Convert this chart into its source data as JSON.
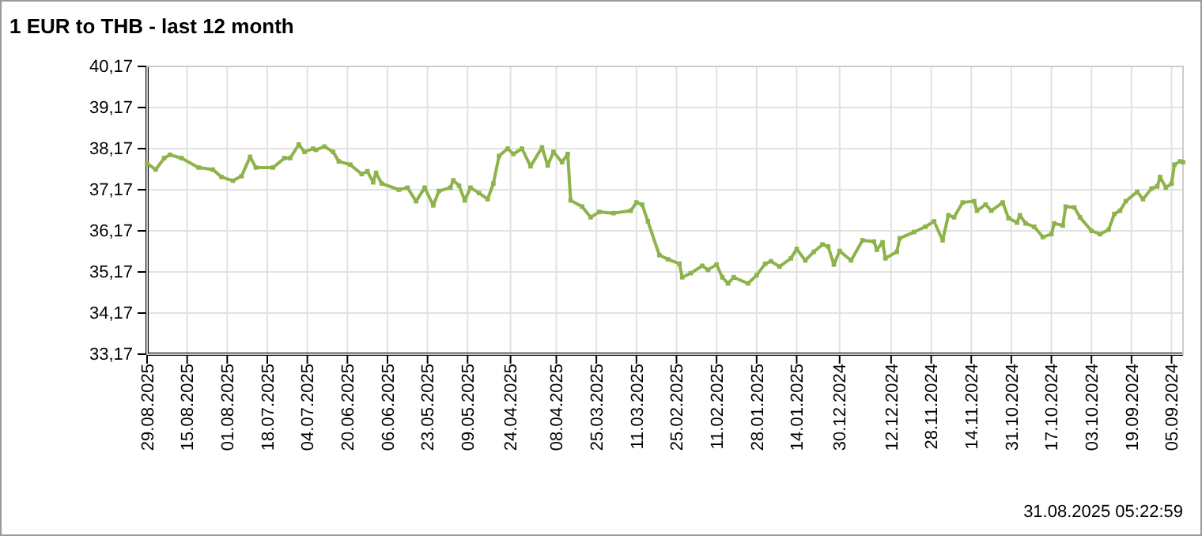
{
  "chart_data": {
    "type": "line",
    "title": "1 EUR to THB - last 12 month",
    "x": [
      "2025-08-29",
      "2025-08-26",
      "2025-08-23",
      "2025-08-21",
      "2025-08-17",
      "2025-08-11",
      "2025-08-06",
      "2025-08-03",
      "2025-07-30",
      "2025-07-27",
      "2025-07-24",
      "2025-07-22",
      "2025-07-16",
      "2025-07-12",
      "2025-07-10",
      "2025-07-07",
      "2025-07-05",
      "2025-07-02",
      "2025-07-01",
      "2025-06-28",
      "2025-06-25",
      "2025-06-23",
      "2025-06-19",
      "2025-06-15",
      "2025-06-13",
      "2025-06-11",
      "2025-06-10",
      "2025-06-08",
      "2025-06-02",
      "2025-05-30",
      "2025-05-27",
      "2025-05-24",
      "2025-05-21",
      "2025-05-19",
      "2025-05-15",
      "2025-05-14",
      "2025-05-12",
      "2025-05-10",
      "2025-05-08",
      "2025-05-05",
      "2025-05-02",
      "2025-04-30",
      "2025-04-28",
      "2025-04-25",
      "2025-04-23",
      "2025-04-20",
      "2025-04-17",
      "2025-04-13",
      "2025-04-11",
      "2025-04-09",
      "2025-04-06",
      "2025-04-04",
      "2025-04-03",
      "2025-03-30",
      "2025-03-27",
      "2025-03-24",
      "2025-03-19",
      "2025-03-13",
      "2025-03-11",
      "2025-03-09",
      "2025-03-07",
      "2025-03-03",
      "2025-02-28",
      "2025-02-24",
      "2025-02-23",
      "2025-02-20",
      "2025-02-16",
      "2025-02-14",
      "2025-02-11",
      "2025-02-09",
      "2025-02-07",
      "2025-02-05",
      "2025-01-31",
      "2025-01-28",
      "2025-01-25",
      "2025-01-23",
      "2025-01-20",
      "2025-01-16",
      "2025-01-14",
      "2025-01-11",
      "2025-01-08",
      "2025-01-05",
      "2025-01-03",
      "2025-01-01",
      "2024-12-30",
      "2024-12-26",
      "2024-12-22",
      "2024-12-18",
      "2024-12-17",
      "2024-12-15",
      "2024-12-14",
      "2024-12-10",
      "2024-12-09",
      "2024-12-04",
      "2024-11-30",
      "2024-11-27",
      "2024-11-24",
      "2024-11-22",
      "2024-11-20",
      "2024-11-17",
      "2024-11-13",
      "2024-11-12",
      "2024-11-09",
      "2024-11-07",
      "2024-11-03",
      "2024-11-01",
      "2024-10-29",
      "2024-10-28",
      "2024-10-26",
      "2024-10-23",
      "2024-10-20",
      "2024-10-17",
      "2024-10-16",
      "2024-10-13",
      "2024-10-12",
      "2024-10-09",
      "2024-10-07",
      "2024-10-03",
      "2024-09-30",
      "2024-09-27",
      "2024-09-25",
      "2024-09-23",
      "2024-09-21",
      "2024-09-17",
      "2024-09-15",
      "2024-09-12",
      "2024-09-10",
      "2024-09-09",
      "2024-09-07",
      "2024-09-05",
      "2024-09-04",
      "2024-09-02",
      "2024-09-01"
    ],
    "series": [
      {
        "color": "#8db34a",
        "values": [
          37.81,
          37.66,
          37.94,
          38.02,
          37.94,
          37.71,
          37.66,
          37.48,
          37.39,
          37.5,
          37.97,
          37.71,
          37.71,
          37.94,
          37.94,
          38.27,
          38.09,
          38.17,
          38.14,
          38.22,
          38.09,
          37.86,
          37.78,
          37.55,
          37.62,
          37.35,
          37.58,
          37.32,
          37.17,
          37.22,
          36.89,
          37.22,
          36.79,
          37.14,
          37.22,
          37.4,
          37.27,
          36.91,
          37.22,
          37.09,
          36.94,
          37.32,
          37.99,
          38.17,
          38.04,
          38.17,
          37.74,
          38.2,
          37.76,
          38.09,
          37.84,
          38.04,
          36.91,
          36.76,
          36.5,
          36.63,
          36.6,
          36.66,
          36.86,
          36.81,
          36.4,
          35.58,
          35.48,
          35.37,
          35.04,
          35.14,
          35.32,
          35.22,
          35.35,
          35.04,
          34.89,
          35.04,
          34.89,
          35.09,
          35.37,
          35.43,
          35.3,
          35.5,
          35.73,
          35.45,
          35.66,
          35.84,
          35.79,
          35.35,
          35.68,
          35.45,
          35.94,
          35.91,
          35.71,
          35.89,
          35.5,
          35.66,
          35.99,
          36.14,
          36.27,
          36.4,
          35.94,
          36.55,
          36.5,
          36.86,
          36.89,
          36.66,
          36.81,
          36.66,
          36.86,
          36.48,
          36.37,
          36.55,
          36.35,
          36.27,
          36.02,
          36.09,
          36.35,
          36.3,
          36.76,
          36.74,
          36.5,
          36.17,
          36.09,
          36.2,
          36.58,
          36.66,
          36.89,
          37.12,
          36.94,
          37.2,
          37.25,
          37.48,
          37.22,
          37.32,
          37.78,
          37.86,
          37.84
        ]
      }
    ],
    "xlim": [
      "2025-08-29",
      "2024-09-01"
    ],
    "xticks": [
      {
        "value": "2025-08-29",
        "label": "29.08.2025"
      },
      {
        "value": "2025-08-15",
        "label": "15.08.2025"
      },
      {
        "value": "2025-08-01",
        "label": "01.08.2025"
      },
      {
        "value": "2025-07-18",
        "label": "18.07.2025"
      },
      {
        "value": "2025-07-04",
        "label": "04.07.2025"
      },
      {
        "value": "2025-06-20",
        "label": "20.06.2025"
      },
      {
        "value": "2025-06-06",
        "label": "06.06.2025"
      },
      {
        "value": "2025-05-23",
        "label": "23.05.2025"
      },
      {
        "value": "2025-05-09",
        "label": "09.05.2025"
      },
      {
        "value": "2025-04-24",
        "label": "24.04.2025"
      },
      {
        "value": "2025-04-08",
        "label": "08.04.2025"
      },
      {
        "value": "2025-03-25",
        "label": "25.03.2025"
      },
      {
        "value": "2025-03-11",
        "label": "11.03.2025"
      },
      {
        "value": "2025-02-25",
        "label": "25.02.2025"
      },
      {
        "value": "2025-02-11",
        "label": "11.02.2025"
      },
      {
        "value": "2025-01-28",
        "label": "28.01.2025"
      },
      {
        "value": "2025-01-14",
        "label": "14.01.2025"
      },
      {
        "value": "2024-12-30",
        "label": "30.12.2024"
      },
      {
        "value": "2024-12-12",
        "label": "12.12.2024"
      },
      {
        "value": "2024-11-28",
        "label": "28.11.2024"
      },
      {
        "value": "2024-11-14",
        "label": "14.11.2024"
      },
      {
        "value": "2024-10-31",
        "label": "31.10.2024"
      },
      {
        "value": "2024-10-17",
        "label": "17.10.2024"
      },
      {
        "value": "2024-10-03",
        "label": "03.10.2024"
      },
      {
        "value": "2024-09-19",
        "label": "19.09.2024"
      },
      {
        "value": "2024-09-05",
        "label": "05.09.2024"
      }
    ],
    "ylim": [
      33.17,
      40.17
    ],
    "yticks": [
      {
        "value": 33.17,
        "label": "33,17"
      },
      {
        "value": 34.17,
        "label": "34,17"
      },
      {
        "value": 35.17,
        "label": "35,17"
      },
      {
        "value": 36.17,
        "label": "36,17"
      },
      {
        "value": 37.17,
        "label": "37,17"
      },
      {
        "value": 38.17,
        "label": "38,17"
      },
      {
        "value": 39.17,
        "label": "39,17"
      },
      {
        "value": 40.17,
        "label": "40,17"
      }
    ],
    "grid": true,
    "marker": "square",
    "line_style": "solid",
    "annotations": [
      "31.08.2025 05:22:59"
    ]
  }
}
